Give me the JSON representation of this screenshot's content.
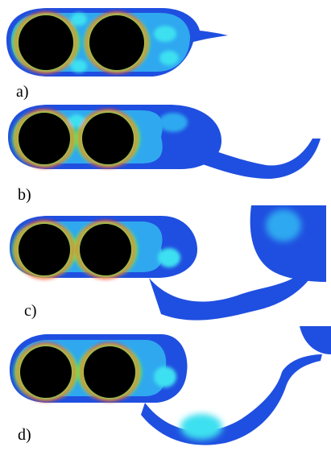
{
  "panels": [
    {
      "label": "a)"
    },
    {
      "label": "b)"
    },
    {
      "label": "c)"
    },
    {
      "label": "d)"
    }
  ],
  "colors": {
    "background": "#ffffff",
    "cylinder": "#000000",
    "field_low": "#1f4fe0",
    "field_mid": "#2fa8f0",
    "field_cyan": "#3ee0f0",
    "field_green": "#4ee05a",
    "field_high": "#ff2a14"
  }
}
